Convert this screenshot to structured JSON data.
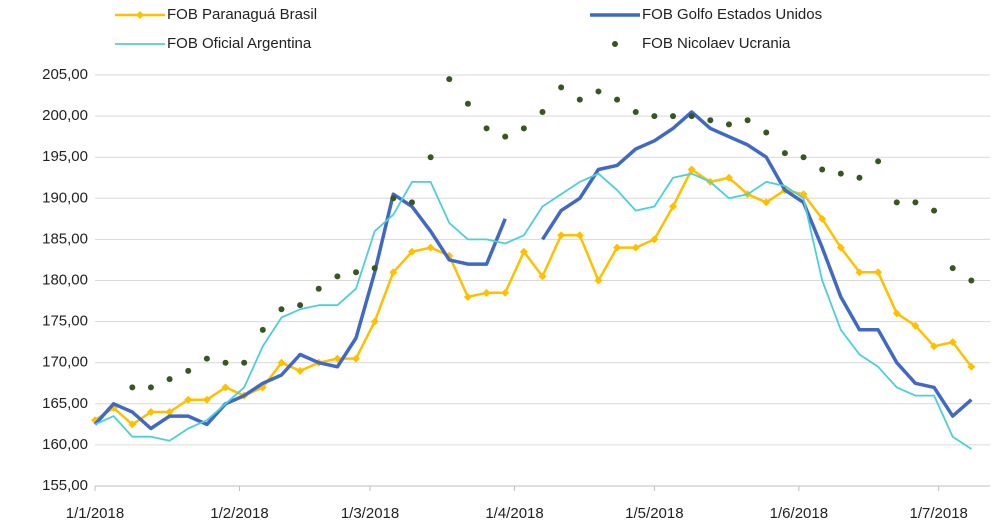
{
  "chart_data": {
    "type": "line",
    "x": [
      "1/1/2018",
      "5/1/2018",
      "9/1/2018",
      "13/1/2018",
      "17/1/2018",
      "21/1/2018",
      "25/1/2018",
      "29/1/2018",
      "2/2/2018",
      "6/2/2018",
      "10/2/2018",
      "14/2/2018",
      "18/2/2018",
      "22/2/2018",
      "26/2/2018",
      "2/3/2018",
      "6/3/2018",
      "10/3/2018",
      "14/3/2018",
      "18/3/2018",
      "22/3/2018",
      "26/3/2018",
      "30/3/2018",
      "3/4/2018",
      "7/4/2018",
      "11/4/2018",
      "15/4/2018",
      "19/4/2018",
      "23/4/2018",
      "27/4/2018",
      "1/5/2018",
      "5/5/2018",
      "9/5/2018",
      "13/5/2018",
      "17/5/2018",
      "21/5/2018",
      "25/5/2018",
      "29/5/2018",
      "2/6/2018",
      "6/6/2018",
      "10/6/2018",
      "14/6/2018",
      "18/6/2018",
      "22/6/2018",
      "26/6/2018",
      "30/6/2018",
      "4/7/2018",
      "8/7/2018"
    ],
    "series": [
      {
        "name": "FOB Paranaguá Brasil",
        "color": "#ffc000",
        "style": "line-diamond",
        "values": [
          163,
          164.5,
          162.5,
          164,
          164,
          165.5,
          165.5,
          167,
          166,
          167,
          170,
          169,
          170,
          170.5,
          170.5,
          175,
          181,
          183.5,
          184,
          183,
          178,
          178.5,
          178.5,
          183.5,
          180.5,
          185.5,
          185.5,
          180,
          184,
          184,
          185,
          189,
          193.5,
          192,
          192.5,
          190.5,
          189.5,
          191,
          190.5,
          187.5,
          184,
          181,
          181,
          176,
          174.5,
          172,
          172.5,
          169.5
        ]
      },
      {
        "name": "FOB Golfo Estados Unidos",
        "color": "#4169c4",
        "style": "line-thick",
        "values": [
          162.5,
          165,
          164,
          162,
          163.5,
          163.5,
          162.5,
          165,
          166,
          167.5,
          168.5,
          171,
          170,
          169.5,
          173,
          181,
          190.5,
          189,
          186,
          182.5,
          182,
          182,
          187.5,
          null,
          185,
          188.5,
          190,
          193.5,
          194,
          196,
          197,
          198.5,
          200.5,
          198.5,
          197.5,
          196.5,
          195,
          191,
          189.5,
          184,
          178,
          174,
          174,
          170,
          167.5,
          167,
          163.5,
          165.5
        ]
      },
      {
        "name": "FOB Oficial Argentina",
        "color": "#4dcfd8",
        "style": "line-thin",
        "values": [
          162.5,
          163.5,
          161,
          161,
          160.5,
          162,
          163,
          165,
          167,
          172,
          175.5,
          176.5,
          177,
          177,
          179,
          186,
          188,
          192,
          192,
          187,
          185,
          185,
          184.5,
          185.5,
          189,
          190.5,
          192,
          193,
          191,
          188.5,
          189,
          192.5,
          193,
          192,
          190,
          190.5,
          192,
          191.5,
          190,
          180,
          174,
          171,
          169.5,
          167,
          166,
          166,
          161,
          159.5
        ]
      },
      {
        "name": "FOB Nicolaev Ucrania",
        "color": "#375623",
        "style": "dots",
        "values": [
          null,
          null,
          167,
          167,
          168,
          169,
          170.5,
          170,
          170,
          174,
          176.5,
          177,
          179,
          180.5,
          181,
          181.5,
          190,
          189.5,
          195,
          204.5,
          201.5,
          198.5,
          197.5,
          198.5,
          200.5,
          203.5,
          202,
          203,
          202,
          200.5,
          200,
          200,
          200,
          199.5,
          199,
          199.5,
          198,
          195.5,
          195,
          193.5,
          193,
          192.5,
          194.5,
          189.5,
          189.5,
          188.5,
          181.5,
          180
        ]
      }
    ],
    "xlim": [
      "1/1/2018",
      "12/7/2018"
    ],
    "xticks": [
      "1/1/2018",
      "1/2/2018",
      "1/3/2018",
      "1/4/2018",
      "1/5/2018",
      "1/6/2018",
      "1/7/2018"
    ],
    "ylim": [
      155,
      205
    ],
    "yticks": [
      {
        "value": 155,
        "label": "155,00"
      },
      {
        "value": 160,
        "label": "160,00"
      },
      {
        "value": 165,
        "label": "165,00"
      },
      {
        "value": 170,
        "label": "170,00"
      },
      {
        "value": 175,
        "label": "175,00"
      },
      {
        "value": 180,
        "label": "180,00"
      },
      {
        "value": 185,
        "label": "185,00"
      },
      {
        "value": 190,
        "label": "190,00"
      },
      {
        "value": 195,
        "label": "195,00"
      },
      {
        "value": 200,
        "label": "200,00"
      },
      {
        "value": 205,
        "label": "205,00"
      }
    ],
    "grid": true,
    "legend": "top"
  }
}
